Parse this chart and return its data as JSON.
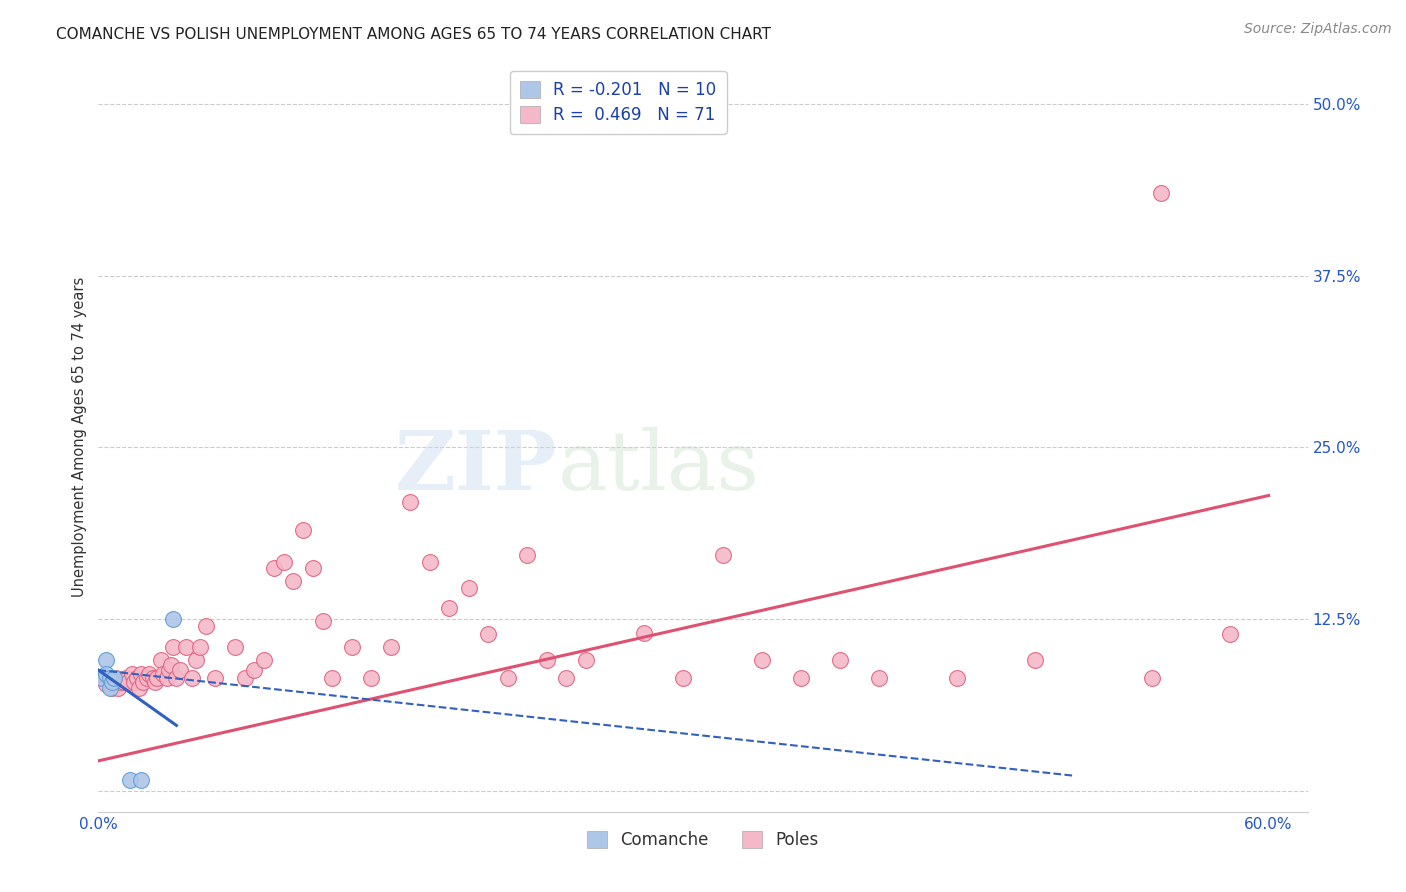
{
  "title": "COMANCHE VS POLISH UNEMPLOYMENT AMONG AGES 65 TO 74 YEARS CORRELATION CHART",
  "source": "Source: ZipAtlas.com",
  "ylabel": "Unemployment Among Ages 65 to 74 years",
  "xlim": [
    0.0,
    0.62
  ],
  "ylim": [
    -0.015,
    0.53
  ],
  "xtick_positions": [
    0.0,
    0.1,
    0.2,
    0.3,
    0.4,
    0.5,
    0.6
  ],
  "xticklabels": [
    "0.0%",
    "",
    "",
    "",
    "",
    "",
    "60.0%"
  ],
  "ytick_positions": [
    0.0,
    0.125,
    0.25,
    0.375,
    0.5
  ],
  "yticklabels": [
    "",
    "12.5%",
    "25.0%",
    "37.5%",
    "50.0%"
  ],
  "watermark_zip": "ZIP",
  "watermark_atlas": "atlas",
  "legend_labels": [
    "Comanche",
    "Poles"
  ],
  "comanche_R": -0.201,
  "comanche_N": 10,
  "poles_R": 0.469,
  "poles_N": 71,
  "comanche_color": "#aec6e8",
  "comanche_edge_color": "#5b9bd5",
  "poles_color": "#f4b8c8",
  "poles_edge_color": "#e06080",
  "comanche_line_color": "#3060c0",
  "poles_line_color": "#e05070",
  "grid_color": "#cccccc",
  "poles_line_x0": 0.0,
  "poles_line_y0": 0.022,
  "poles_line_x1": 0.6,
  "poles_line_y1": 0.215,
  "comanche_line_x0": 0.0,
  "comanche_line_y0": 0.088,
  "comanche_line_x1": 0.28,
  "comanche_line_y1": 0.045,
  "comanche_x": [
    0.002,
    0.004,
    0.004,
    0.006,
    0.006,
    0.007,
    0.008,
    0.016,
    0.022,
    0.038
  ],
  "comanche_y": [
    0.082,
    0.095,
    0.085,
    0.082,
    0.075,
    0.079,
    0.082,
    0.008,
    0.008,
    0.125
  ],
  "poles_x": [
    0.003,
    0.004,
    0.006,
    0.007,
    0.008,
    0.009,
    0.01,
    0.011,
    0.013,
    0.014,
    0.015,
    0.017,
    0.018,
    0.02,
    0.021,
    0.022,
    0.023,
    0.025,
    0.026,
    0.028,
    0.029,
    0.03,
    0.032,
    0.033,
    0.035,
    0.036,
    0.037,
    0.038,
    0.04,
    0.042,
    0.045,
    0.048,
    0.05,
    0.052,
    0.055,
    0.06,
    0.07,
    0.075,
    0.08,
    0.085,
    0.09,
    0.095,
    0.1,
    0.105,
    0.11,
    0.115,
    0.12,
    0.13,
    0.14,
    0.15,
    0.16,
    0.17,
    0.18,
    0.19,
    0.2,
    0.21,
    0.22,
    0.23,
    0.24,
    0.25,
    0.28,
    0.3,
    0.32,
    0.34,
    0.36,
    0.38,
    0.4,
    0.44,
    0.48,
    0.54,
    0.58
  ],
  "poles_y": [
    0.082,
    0.078,
    0.082,
    0.075,
    0.079,
    0.082,
    0.075,
    0.079,
    0.079,
    0.082,
    0.079,
    0.085,
    0.079,
    0.082,
    0.075,
    0.085,
    0.079,
    0.082,
    0.085,
    0.082,
    0.079,
    0.082,
    0.095,
    0.085,
    0.082,
    0.088,
    0.092,
    0.105,
    0.082,
    0.088,
    0.105,
    0.082,
    0.095,
    0.105,
    0.12,
    0.082,
    0.105,
    0.082,
    0.088,
    0.095,
    0.162,
    0.167,
    0.153,
    0.19,
    0.162,
    0.124,
    0.082,
    0.105,
    0.082,
    0.105,
    0.21,
    0.167,
    0.133,
    0.148,
    0.114,
    0.082,
    0.172,
    0.095,
    0.082,
    0.095,
    0.115,
    0.082,
    0.172,
    0.095,
    0.082,
    0.095,
    0.082,
    0.082,
    0.095,
    0.082,
    0.114
  ],
  "poles_outlier_x": [
    0.545
  ],
  "poles_outlier_y": [
    0.435
  ]
}
